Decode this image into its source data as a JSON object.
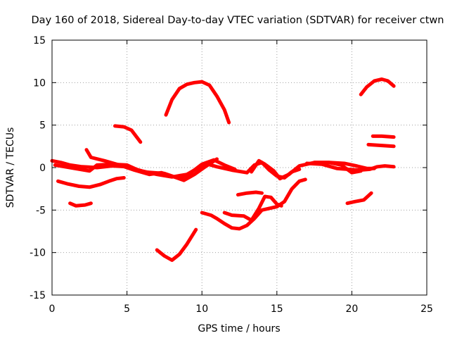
{
  "chart_data": {
    "type": "scatter",
    "title": "Day 160 of 2018, Sidereal Day-to-day VTEC variation (SDTVAR) for receiver ctwn",
    "xlabel": "GPS time / hours",
    "ylabel": "SDTVAR / TECUs",
    "xlim": [
      0,
      25
    ],
    "ylim": [
      -15,
      15
    ],
    "xticks": [
      0,
      5,
      10,
      15,
      20,
      25
    ],
    "yticks": [
      -15,
      -10,
      -5,
      0,
      5,
      10,
      15
    ],
    "grid": true,
    "color": "#ff0000",
    "series": [
      {
        "name": "s1",
        "points": [
          [
            0,
            0.8
          ],
          [
            0.6,
            0.6
          ],
          [
            1.2,
            0.3
          ],
          [
            2.0,
            0.1
          ],
          [
            3.0,
            0.0
          ],
          [
            4.0,
            0.2
          ],
          [
            5.0,
            0.1
          ],
          [
            6.0,
            -0.4
          ],
          [
            7.0,
            -0.8
          ],
          [
            8.0,
            -1.1
          ],
          [
            9.0,
            -0.8
          ],
          [
            9.5,
            -0.3
          ],
          [
            10.2,
            0.5
          ],
          [
            11.0,
            0.1
          ],
          [
            12.0,
            -0.3
          ],
          [
            13.0,
            -0.6
          ],
          [
            13.5,
            0.3
          ],
          [
            14.0,
            0.6
          ],
          [
            14.5,
            -0.3
          ],
          [
            15.0,
            -1.0
          ],
          [
            15.5,
            -1.2
          ],
          [
            16.0,
            -0.5
          ],
          [
            16.5,
            -0.2
          ]
        ]
      },
      {
        "name": "s2",
        "points": [
          [
            0.2,
            0.3
          ],
          [
            1.5,
            -0.1
          ],
          [
            2.5,
            -0.4
          ],
          [
            3.0,
            0.3
          ],
          [
            4.0,
            0.4
          ],
          [
            5.0,
            0.3
          ],
          [
            6.0,
            -0.5
          ],
          [
            7.5,
            -0.7
          ],
          [
            8.5,
            -1.3
          ],
          [
            9.2,
            -0.7
          ],
          [
            10.0,
            0.4
          ],
          [
            10.8,
            0.9
          ],
          [
            11.5,
            0.3
          ],
          [
            12.2,
            -0.2
          ]
        ]
      },
      {
        "name": "s3",
        "points": [
          [
            2.3,
            2.1
          ],
          [
            2.6,
            1.2
          ],
          [
            3.5,
            0.8
          ],
          [
            4.5,
            0.3
          ],
          [
            5.5,
            -0.3
          ],
          [
            6.5,
            -0.8
          ],
          [
            7.3,
            -0.6
          ],
          [
            8.0,
            -1.0
          ],
          [
            8.8,
            -1.5
          ],
          [
            9.5,
            -0.8
          ],
          [
            10.3,
            0.2
          ],
          [
            11.0,
            1.0
          ]
        ]
      },
      {
        "name": "s4",
        "points": [
          [
            0.4,
            -1.6
          ],
          [
            1.0,
            -1.9
          ],
          [
            1.8,
            -2.2
          ],
          [
            2.5,
            -2.3
          ],
          [
            3.2,
            -2.0
          ],
          [
            3.8,
            -1.6
          ],
          [
            4.3,
            -1.3
          ],
          [
            4.8,
            -1.2
          ]
        ]
      },
      {
        "name": "s5",
        "points": [
          [
            1.2,
            -4.2
          ],
          [
            1.6,
            -4.5
          ],
          [
            2.2,
            -4.4
          ],
          [
            2.6,
            -4.2
          ]
        ]
      },
      {
        "name": "s6",
        "points": [
          [
            4.2,
            4.9
          ],
          [
            4.8,
            4.8
          ],
          [
            5.3,
            4.4
          ],
          [
            5.9,
            3.0
          ]
        ]
      },
      {
        "name": "s7",
        "points": [
          [
            7.6,
            6.2
          ],
          [
            8.0,
            8.0
          ],
          [
            8.5,
            9.3
          ],
          [
            9.0,
            9.8
          ],
          [
            9.5,
            10.0
          ],
          [
            10.0,
            10.1
          ],
          [
            10.5,
            9.7
          ],
          [
            11.0,
            8.4
          ],
          [
            11.5,
            6.8
          ],
          [
            11.8,
            5.3
          ]
        ]
      },
      {
        "name": "s8",
        "points": [
          [
            7.0,
            -9.7
          ],
          [
            7.5,
            -10.4
          ],
          [
            8.0,
            -10.9
          ],
          [
            8.5,
            -10.2
          ],
          [
            9.0,
            -9.0
          ],
          [
            9.6,
            -7.3
          ]
        ]
      },
      {
        "name": "s9",
        "points": [
          [
            10.0,
            -5.3
          ],
          [
            10.6,
            -5.6
          ],
          [
            11.0,
            -6.0
          ],
          [
            11.5,
            -6.6
          ],
          [
            12.0,
            -7.1
          ],
          [
            12.5,
            -7.2
          ],
          [
            13.0,
            -6.8
          ],
          [
            13.5,
            -6.0
          ],
          [
            14.0,
            -5.0
          ],
          [
            14.5,
            -4.8
          ],
          [
            15.0,
            -4.6
          ],
          [
            15.5,
            -4.0
          ],
          [
            16.0,
            -2.5
          ],
          [
            16.5,
            -1.6
          ],
          [
            16.9,
            -1.4
          ]
        ]
      },
      {
        "name": "s10",
        "points": [
          [
            11.5,
            -5.3
          ],
          [
            12.0,
            -5.6
          ],
          [
            12.8,
            -5.7
          ],
          [
            13.3,
            -6.2
          ],
          [
            13.8,
            -4.8
          ],
          [
            14.2,
            -3.4
          ],
          [
            14.6,
            -3.5
          ],
          [
            15.0,
            -4.3
          ],
          [
            15.3,
            -4.5
          ]
        ]
      },
      {
        "name": "s11",
        "points": [
          [
            12.4,
            -3.2
          ],
          [
            13.0,
            -3.0
          ],
          [
            13.6,
            -2.9
          ],
          [
            14.0,
            -3.0
          ]
        ]
      },
      {
        "name": "s12",
        "points": [
          [
            13.3,
            -0.5
          ],
          [
            13.8,
            0.8
          ],
          [
            14.2,
            0.4
          ],
          [
            14.8,
            -0.4
          ],
          [
            15.2,
            -1.3
          ],
          [
            15.8,
            -0.8
          ],
          [
            16.5,
            0.2
          ],
          [
            17.5,
            0.6
          ],
          [
            18.5,
            0.6
          ],
          [
            19.5,
            0.5
          ],
          [
            20.3,
            0.2
          ],
          [
            21.0,
            -0.1
          ],
          [
            21.5,
            -0.1
          ]
        ]
      },
      {
        "name": "s13",
        "points": [
          [
            17.0,
            0.5
          ],
          [
            18.0,
            0.4
          ],
          [
            19.0,
            -0.1
          ],
          [
            19.7,
            -0.2
          ],
          [
            20.5,
            -0.3
          ],
          [
            21.2,
            -0.2
          ],
          [
            21.7,
            0.1
          ],
          [
            22.2,
            0.2
          ],
          [
            22.8,
            0.1
          ]
        ]
      },
      {
        "name": "s14",
        "points": [
          [
            17.5,
            0.6
          ],
          [
            18.5,
            0.6
          ],
          [
            19.3,
            0.3
          ],
          [
            20.0,
            -0.6
          ],
          [
            20.6,
            -0.4
          ]
        ]
      },
      {
        "name": "s15",
        "points": [
          [
            19.7,
            -4.2
          ],
          [
            20.2,
            -4.0
          ],
          [
            20.8,
            -3.8
          ],
          [
            21.3,
            -3.0
          ]
        ]
      },
      {
        "name": "s16",
        "points": [
          [
            20.6,
            8.6
          ],
          [
            21.0,
            9.5
          ],
          [
            21.5,
            10.2
          ],
          [
            22.0,
            10.4
          ],
          [
            22.4,
            10.2
          ],
          [
            22.8,
            9.6
          ]
        ]
      },
      {
        "name": "s17",
        "points": [
          [
            21.4,
            3.7
          ],
          [
            22.0,
            3.7
          ],
          [
            22.8,
            3.6
          ]
        ]
      },
      {
        "name": "s18",
        "points": [
          [
            21.1,
            2.7
          ],
          [
            22.0,
            2.6
          ],
          [
            22.8,
            2.5
          ]
        ]
      }
    ]
  }
}
